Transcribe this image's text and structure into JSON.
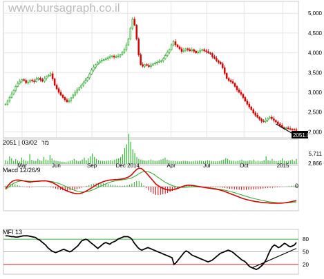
{
  "watermark": "www.bursagraph.co.il",
  "colors": {
    "up": "#22aa22",
    "down": "#dd0000",
    "volume": "#33bb33",
    "macd_line": "#dd0000",
    "macd_signal": "#22aa22",
    "mfi_line": "#000000",
    "grid": "#e6e6e6",
    "frame": "#c8c8c8",
    "trendline": "#000000"
  },
  "chart_data": [
    {
      "type": "candlestick",
      "panel": "price",
      "y_ticks": [
        "5,000",
        "4,500",
        "4,000",
        "3,500",
        "3,000",
        "2,500",
        "2,000"
      ],
      "ylim": [
        1850,
        5300
      ],
      "last_value_label": "2051.00",
      "x_ticks": [
        "Mar",
        "Jun",
        "Sep",
        "Dec 2014",
        "Apr",
        "Jul",
        "Oct",
        "2015"
      ],
      "close_path": [
        2700,
        2780,
        2870,
        2960,
        3050,
        3150,
        3230,
        3280,
        3320,
        3300,
        3240,
        3260,
        3310,
        3290,
        3270,
        3330,
        3360,
        3320,
        3280,
        3350,
        3400,
        3430,
        3470,
        3340,
        3180,
        3090,
        3000,
        2930,
        2870,
        2810,
        2760,
        2790,
        2860,
        2930,
        3000,
        3060,
        3120,
        3180,
        3240,
        3300,
        3370,
        3460,
        3560,
        3640,
        3700,
        3750,
        3790,
        3810,
        3830,
        3850,
        3870,
        3900,
        3920,
        3890,
        3900,
        3920,
        3950,
        4010,
        4080,
        4200,
        4350,
        4620,
        4850,
        4700,
        4350,
        3950,
        3700,
        3660,
        3700,
        3680,
        3650,
        3690,
        3720,
        3740,
        3760,
        3780,
        3800,
        3850,
        3930,
        4010,
        4080,
        4200,
        4280,
        4200,
        4150,
        4100,
        4030,
        4060,
        4100,
        4080,
        4050,
        4080,
        4040,
        4000,
        4020,
        4060,
        4080,
        4050,
        4030,
        4000,
        3980,
        3900,
        3860,
        3800,
        3760,
        3720,
        3620,
        3480,
        3350,
        3300,
        3270,
        3230,
        3150,
        3060,
        3000,
        2950,
        2870,
        2780,
        2700,
        2630,
        2560,
        2480,
        2420,
        2370,
        2320,
        2270,
        2260,
        2300,
        2340,
        2370,
        2330,
        2290,
        2250,
        2200,
        2160,
        2110,
        2090,
        2100,
        2080,
        2070,
        2060,
        2055,
        2051
      ],
      "trendline": {
        "from": [
          132,
          2200
        ],
        "to": [
          141,
          1930
        ]
      }
    },
    {
      "type": "bar",
      "panel": "volume",
      "header_left": "2051 | 03/02",
      "header_right": "מר",
      "y_ticks": [
        "5,711",
        "2,866"
      ],
      "values": [
        0.12,
        0.1,
        0.24,
        0.18,
        0.1,
        0.15,
        0.11,
        0.08,
        0.2,
        0.14,
        0.1,
        0.09,
        0.31,
        0.13,
        0.1,
        0.1,
        0.16,
        0.12,
        0.1,
        0.22,
        0.14,
        0.12,
        0.28,
        0.18,
        0.12,
        0.1,
        0.09,
        0.08,
        0.07,
        0.07,
        0.06,
        0.08,
        0.1,
        0.12,
        0.16,
        0.11,
        0.09,
        0.1,
        0.14,
        0.2,
        0.12,
        0.18,
        0.24,
        0.33,
        0.22,
        0.16,
        0.12,
        0.1,
        0.1,
        0.09,
        0.1,
        0.11,
        0.12,
        0.1,
        0.14,
        0.16,
        0.18,
        0.22,
        0.3,
        0.5,
        0.62,
        0.95,
        0.7,
        0.46,
        0.34,
        0.22,
        0.16,
        0.14,
        0.12,
        0.11,
        0.1,
        0.12,
        0.14,
        0.12,
        0.1,
        0.1,
        0.12,
        0.14,
        0.16,
        0.2,
        0.14,
        0.12,
        0.1,
        0.1,
        0.09,
        0.09,
        0.08,
        0.09,
        0.1,
        0.1,
        0.09,
        0.08,
        0.08,
        0.09,
        0.1,
        0.1,
        0.11,
        0.1,
        0.09,
        0.1,
        0.12,
        0.11,
        0.1,
        0.09,
        0.08,
        0.09,
        0.1,
        0.12,
        0.14,
        0.18,
        0.16,
        0.12,
        0.1,
        0.1,
        0.09,
        0.1,
        0.12,
        0.14,
        0.1,
        0.09,
        0.1,
        0.12,
        0.1,
        0.14,
        0.08,
        0.1,
        0.08,
        0.09,
        0.12,
        0.24,
        0.12,
        0.1,
        0.16,
        0.1,
        0.09,
        0.1,
        0.12,
        0.18,
        0.1,
        0.09,
        0.1,
        0.12,
        0.14,
        0.1,
        0.16
      ]
    },
    {
      "type": "line",
      "panel": "macd",
      "title": "Macd 12/26/9",
      "zero_label": "0",
      "series": [
        {
          "name": "Macd",
          "values": [
            -20,
            10,
            40,
            60,
            70,
            72,
            70,
            65,
            60,
            55,
            50,
            52,
            56,
            58,
            60,
            62,
            64,
            62,
            58,
            50,
            40,
            26,
            10,
            -6,
            -22,
            -36,
            -48,
            -58,
            -66,
            -72,
            -76,
            -74,
            -68,
            -58,
            -46,
            -30,
            -14,
            2,
            18,
            32,
            44,
            54,
            62,
            68,
            72,
            74,
            76,
            78,
            80,
            84,
            90,
            98,
            110,
            130,
            160,
            185,
            200,
            195,
            175,
            150,
            120,
            90,
            60,
            30,
            10,
            -5,
            -18,
            -28,
            -34,
            -36,
            -34,
            -28,
            -20,
            -10,
            0,
            8,
            14,
            16,
            14,
            10,
            6,
            2,
            -2,
            -6,
            -10,
            -14,
            -18,
            -22,
            -26,
            -30,
            -36,
            -44,
            -52,
            -62,
            -72,
            -82,
            -92,
            -102,
            -112,
            -122,
            -130,
            -138,
            -144,
            -150,
            -155,
            -160,
            -164,
            -168,
            -170,
            -172,
            -174,
            -176,
            -178,
            -178,
            -178,
            -177,
            -176,
            -174,
            -170,
            -166,
            -160,
            -155,
            -150
          ]
        },
        {
          "name": "Signal",
          "values": [
            -30,
            -10,
            12,
            30,
            44,
            54,
            60,
            62,
            62,
            61,
            59,
            58,
            57,
            57,
            58,
            59,
            60,
            60,
            59,
            56,
            52,
            46,
            38,
            28,
            18,
            6,
            -6,
            -18,
            -30,
            -40,
            -48,
            -54,
            -58,
            -58,
            -54,
            -48,
            -40,
            -30,
            -18,
            -6,
            6,
            18,
            30,
            40,
            50,
            56,
            62,
            66,
            70,
            74,
            78,
            82,
            88,
            96,
            108,
            124,
            140,
            154,
            162,
            164,
            160,
            150,
            136,
            118,
            100,
            82,
            64,
            48,
            34,
            22,
            12,
            4,
            -2,
            -6,
            -8,
            -8,
            -6,
            -4,
            -2,
            -1,
            -1,
            -2,
            -3,
            -5,
            -7,
            -10,
            -13,
            -17,
            -21,
            -25,
            -29,
            -33,
            -38,
            -44,
            -50,
            -57,
            -64,
            -72,
            -80,
            -88,
            -96,
            -104,
            -112,
            -120,
            -126,
            -132,
            -138,
            -144,
            -150,
            -155,
            -160,
            -164,
            -167,
            -170,
            -172,
            -173,
            -174,
            -174,
            -173,
            -172,
            -170,
            -167,
            -164
          ]
        }
      ]
    },
    {
      "type": "line",
      "panel": "mfi",
      "title": "MFI 13",
      "y_ticks": [
        "80",
        "50",
        "20"
      ],
      "ylim": [
        0,
        100
      ],
      "values": [
        88,
        88,
        87,
        86,
        86,
        85,
        85,
        86,
        87,
        88,
        88,
        88,
        87,
        86,
        85,
        84,
        80,
        78,
        74,
        70,
        66,
        60,
        56,
        52,
        50,
        48,
        50,
        52,
        54,
        56,
        54,
        52,
        50,
        52,
        56,
        60,
        64,
        70,
        76,
        78,
        80,
        78,
        74,
        70,
        66,
        62,
        58,
        62,
        66,
        70,
        72,
        70,
        68,
        72,
        74,
        76,
        80,
        82,
        84,
        86,
        86,
        86,
        84,
        80,
        72,
        66,
        60,
        56,
        54,
        56,
        58,
        60,
        58,
        56,
        54,
        52,
        50,
        48,
        46,
        44,
        42,
        40,
        38,
        36,
        20,
        24,
        30,
        36,
        42,
        48,
        52,
        50,
        46,
        42,
        40,
        38,
        36,
        34,
        32,
        30,
        28,
        26,
        28,
        30,
        34,
        38,
        42,
        46,
        48,
        50,
        52,
        54,
        52,
        50,
        46,
        42,
        38,
        34,
        30,
        28,
        24,
        18,
        14,
        12,
        10,
        8,
        10,
        14,
        18,
        24,
        32,
        44,
        54,
        62,
        66,
        64,
        60,
        62,
        66,
        70,
        68,
        64,
        62,
        64,
        66,
        72
      ],
      "trendline": {
        "from": [
          123,
          12
        ],
        "to": [
          145,
          58
        ]
      }
    }
  ]
}
